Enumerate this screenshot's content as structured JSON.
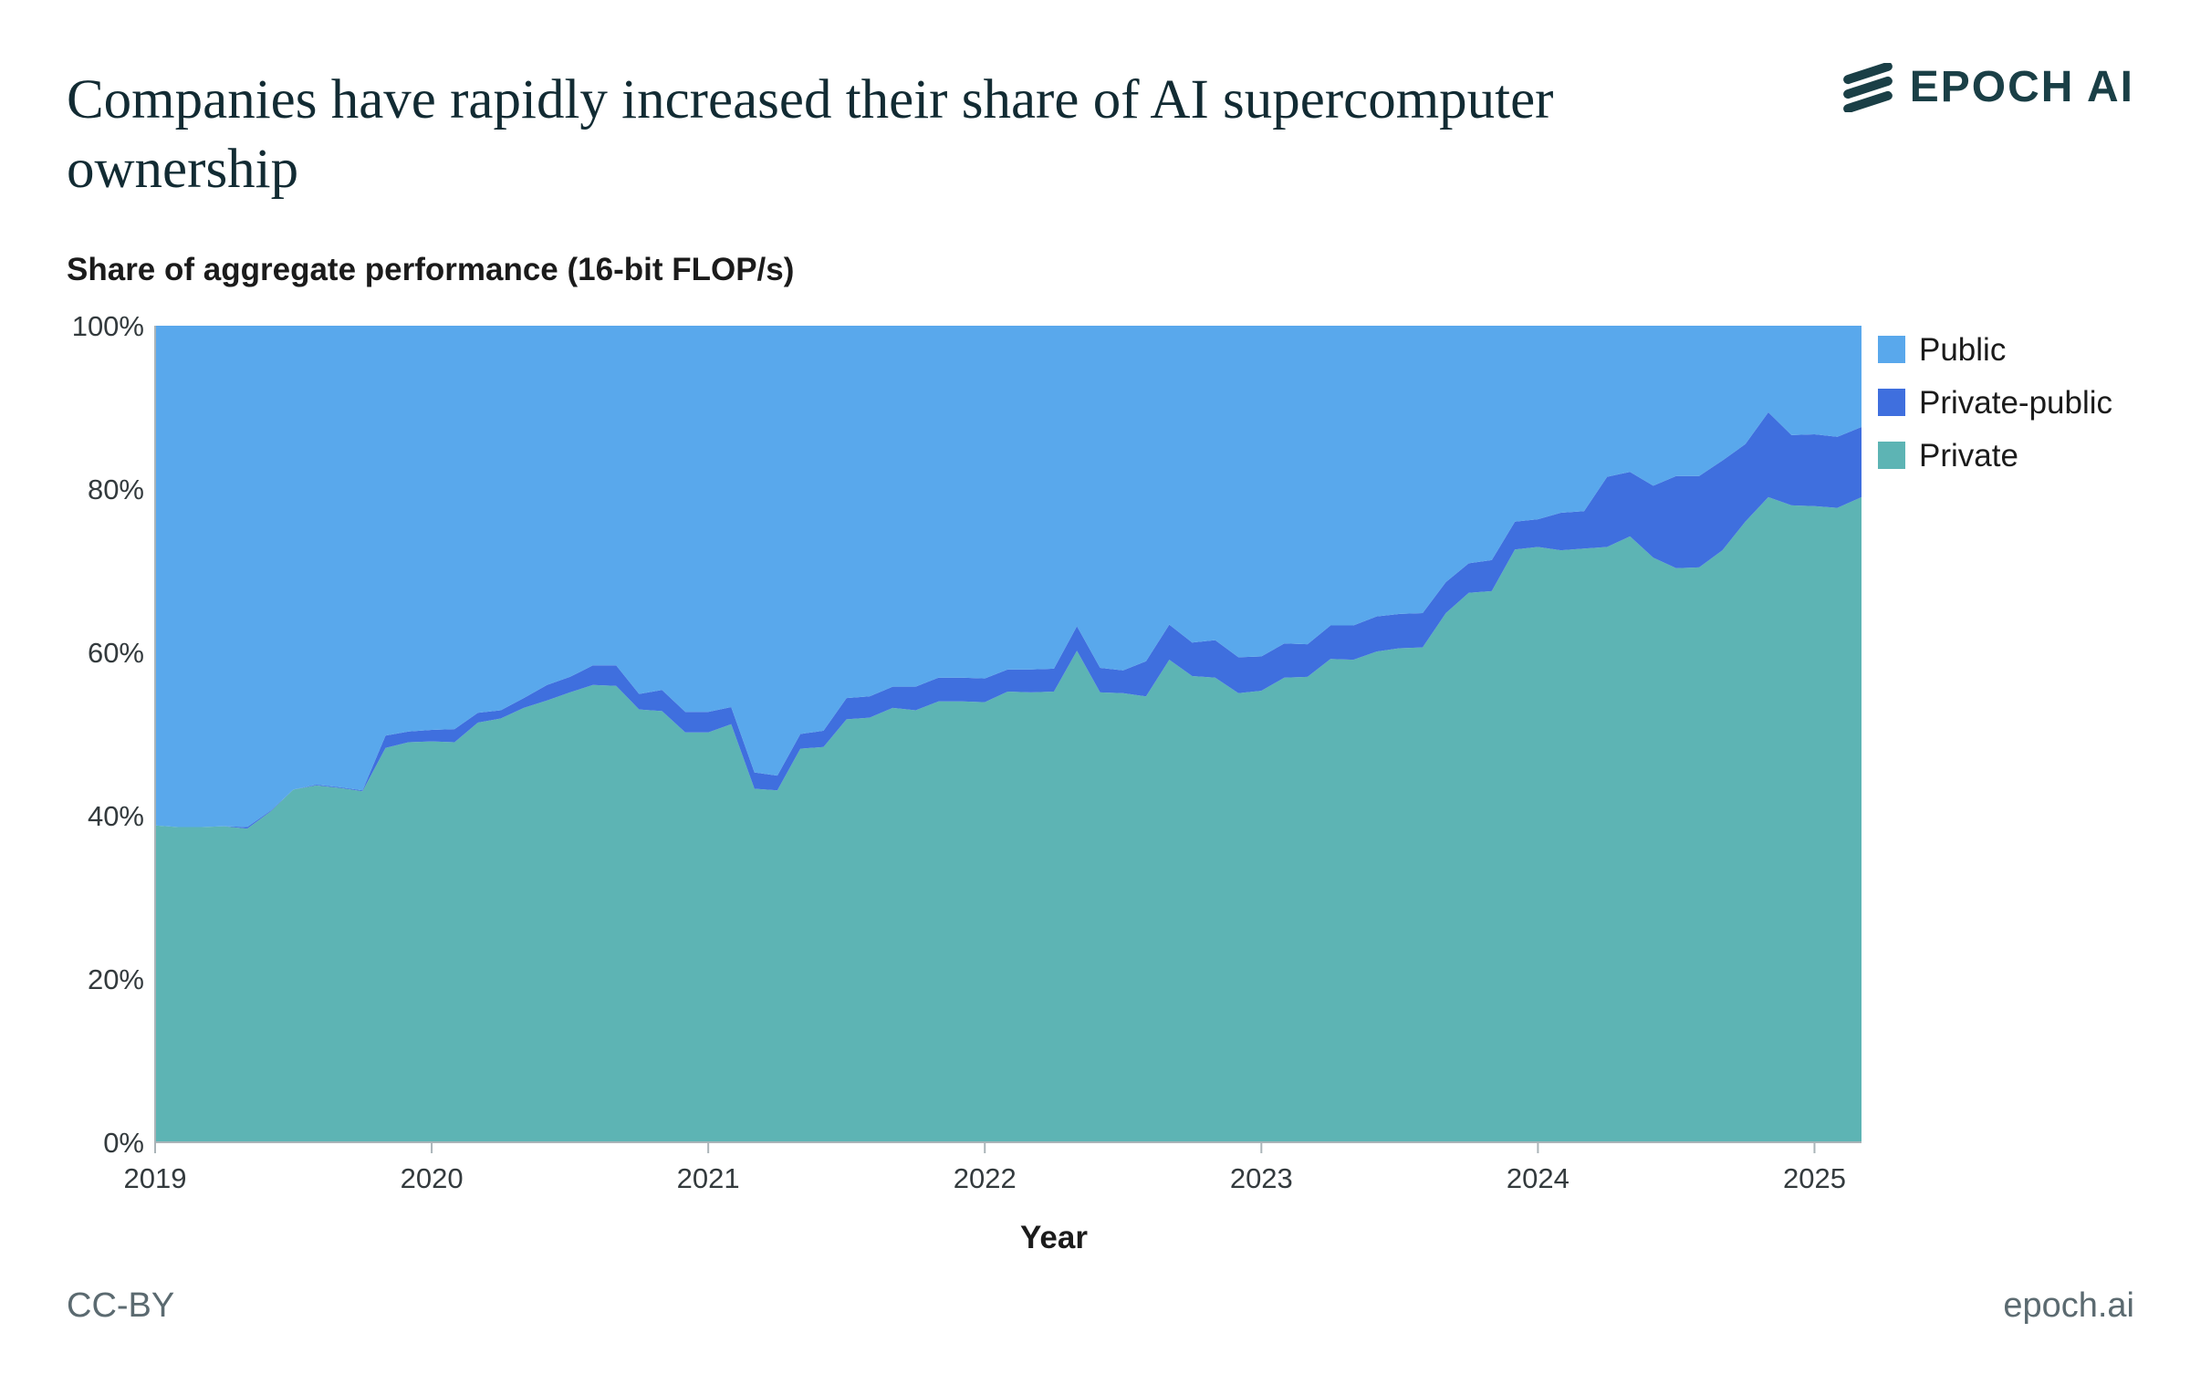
{
  "header": {
    "title": "Companies have rapidly increased their share of AI supercomputer ownership",
    "logo_text": "EPOCH AI"
  },
  "footer": {
    "license": "CC-BY",
    "site": "epoch.ai"
  },
  "colors": {
    "public": "#59a8ec",
    "private_public": "#3f6fde",
    "private": "#5db4b4",
    "axis": "#aab4b8"
  },
  "chart_data": {
    "type": "area",
    "stacked": true,
    "ylabel": "Share of aggregate performance (16-bit FLOP/s)",
    "xlabel": "Year",
    "xlim": [
      2019.0,
      2025.17
    ],
    "ylim": [
      0,
      100
    ],
    "x_ticks": [
      2019,
      2020,
      2021,
      2022,
      2023,
      2024,
      2025
    ],
    "y_ticks": [
      0,
      20,
      40,
      60,
      80,
      100
    ],
    "y_tick_labels": [
      "0%",
      "20%",
      "40%",
      "60%",
      "80%",
      "100%"
    ],
    "legend_position": "right",
    "x": [
      2019.0,
      2019.083,
      2019.167,
      2019.25,
      2019.333,
      2019.417,
      2019.5,
      2019.583,
      2019.667,
      2019.75,
      2019.833,
      2019.917,
      2020.0,
      2020.083,
      2020.167,
      2020.25,
      2020.333,
      2020.417,
      2020.5,
      2020.583,
      2020.667,
      2020.75,
      2020.833,
      2020.917,
      2021.0,
      2021.083,
      2021.167,
      2021.25,
      2021.333,
      2021.417,
      2021.5,
      2021.583,
      2021.667,
      2021.75,
      2021.833,
      2021.917,
      2022.0,
      2022.083,
      2022.167,
      2022.25,
      2022.333,
      2022.417,
      2022.5,
      2022.583,
      2022.667,
      2022.75,
      2022.833,
      2022.917,
      2023.0,
      2023.083,
      2023.167,
      2023.25,
      2023.333,
      2023.417,
      2023.5,
      2023.583,
      2023.667,
      2023.75,
      2023.833,
      2023.917,
      2024.0,
      2024.083,
      2024.167,
      2024.25,
      2024.333,
      2024.417,
      2024.5,
      2024.583,
      2024.667,
      2024.75,
      2024.833,
      2024.917,
      2025.0,
      2025.083,
      2025.17
    ],
    "series": [
      {
        "name": "Private",
        "values": [
          38.8,
          38.6,
          38.6,
          38.7,
          38.4,
          40.5,
          43.2,
          43.7,
          43.4,
          43.0,
          48.3,
          49.0,
          49.1,
          49.0,
          51.4,
          51.9,
          53.2,
          54.1,
          55.1,
          56.0,
          55.9,
          53.0,
          52.8,
          50.2,
          50.2,
          51.2,
          43.3,
          43.1,
          48.2,
          48.4,
          51.8,
          52.0,
          53.2,
          52.9,
          54.0,
          54.0,
          53.9,
          55.2,
          55.1,
          55.2,
          60.2,
          55.1,
          55.0,
          54.6,
          59.1,
          57.1,
          56.9,
          55.0,
          55.3,
          56.9,
          57.0,
          59.2,
          59.1,
          60.1,
          60.5,
          60.6,
          64.8,
          67.3,
          67.5,
          72.6,
          72.9,
          72.5,
          72.7,
          72.9,
          74.2,
          71.6,
          70.3,
          70.4,
          72.5,
          76.0,
          79.0,
          78.0,
          77.9,
          77.7,
          79.0
        ]
      },
      {
        "name": "Private-public",
        "values": [
          0.0,
          0.0,
          0.0,
          0.0,
          0.2,
          0.1,
          0.0,
          0.1,
          0.1,
          0.1,
          1.5,
          1.3,
          1.4,
          1.6,
          1.2,
          1.0,
          1.2,
          1.9,
          1.9,
          2.4,
          2.5,
          1.9,
          2.6,
          2.5,
          2.5,
          2.1,
          2.0,
          1.8,
          1.8,
          2.0,
          2.6,
          2.6,
          2.6,
          2.9,
          2.9,
          2.9,
          2.9,
          2.7,
          2.8,
          2.8,
          3.0,
          3.0,
          2.8,
          4.3,
          4.3,
          4.1,
          4.6,
          4.4,
          4.2,
          4.2,
          4.0,
          4.1,
          4.2,
          4.3,
          4.2,
          4.2,
          3.8,
          3.6,
          3.8,
          3.4,
          3.4,
          4.6,
          4.6,
          8.6,
          7.9,
          8.8,
          11.3,
          11.2,
          11.0,
          9.5,
          10.4,
          8.6,
          8.8,
          8.7,
          8.6
        ]
      },
      {
        "name": "Public",
        "values": [
          61.2,
          61.4,
          61.4,
          61.3,
          61.4,
          59.4,
          56.8,
          56.2,
          56.5,
          56.9,
          50.2,
          49.7,
          49.5,
          49.4,
          47.4,
          47.1,
          45.6,
          44.0,
          43.0,
          41.6,
          41.6,
          45.1,
          44.6,
          47.3,
          47.3,
          46.7,
          54.7,
          55.1,
          50.0,
          49.6,
          45.6,
          45.4,
          44.2,
          44.2,
          43.1,
          43.1,
          43.2,
          42.1,
          42.1,
          42.0,
          36.8,
          41.9,
          42.2,
          41.1,
          36.6,
          38.8,
          38.5,
          40.6,
          40.5,
          38.9,
          39.0,
          36.7,
          36.7,
          35.6,
          35.3,
          35.2,
          31.4,
          29.1,
          28.7,
          24.0,
          23.7,
          22.9,
          22.7,
          18.5,
          17.9,
          19.6,
          18.4,
          18.4,
          16.5,
          14.5,
          10.6,
          13.4,
          13.3,
          13.6,
          12.4
        ]
      }
    ]
  }
}
